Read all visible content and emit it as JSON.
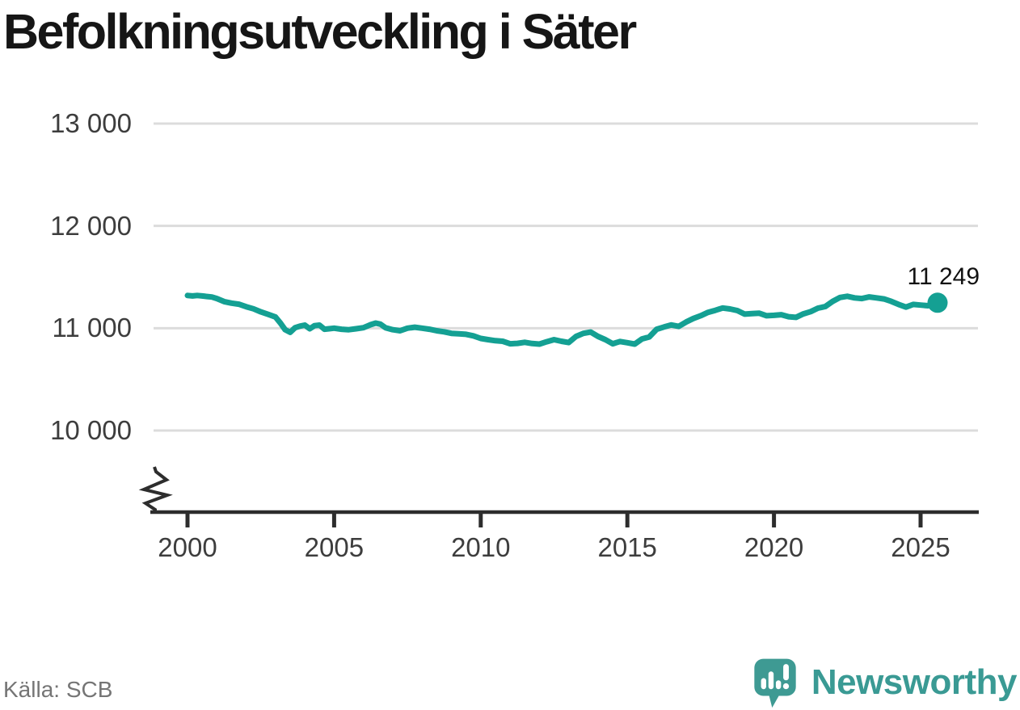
{
  "title": "Befolkningsutveckling i Säter",
  "source": "Källa: SCB",
  "brand": {
    "name": "Newsworthy",
    "logo_icon": "speech-bubble-bar-chart-exclamation",
    "color": "#3a9a94"
  },
  "colors": {
    "line": "#14a093",
    "grid": "#dcdcdc",
    "axis": "#2d2d2d",
    "tick_text": "#3d3d3d",
    "title_text": "#161616",
    "source_text": "#757575"
  },
  "chart_data": {
    "type": "line",
    "title": "Befolkningsutveckling i Säter",
    "xlabel": "",
    "ylabel": "",
    "grid": "horizontal",
    "legend": "none",
    "axis_break": true,
    "xlim": [
      1998.8,
      2027
    ],
    "ylim_shown": [
      10000,
      13000
    ],
    "y_ticks": [
      {
        "label": "13 000",
        "value": 13000
      },
      {
        "label": "12 000",
        "value": 12000
      },
      {
        "label": "11 000",
        "value": 11000
      },
      {
        "label": "10 000",
        "value": 10000
      }
    ],
    "x_ticks": [
      {
        "label": "2000",
        "value": 2000
      },
      {
        "label": "2005",
        "value": 2005
      },
      {
        "label": "2010",
        "value": 2010
      },
      {
        "label": "2015",
        "value": 2015
      },
      {
        "label": "2020",
        "value": 2020
      },
      {
        "label": "2025",
        "value": 2025
      }
    ],
    "end_label": "11 249",
    "end_value": 11249,
    "series": [
      {
        "name": "Befolkning i Säter",
        "color": "#14a093",
        "points": [
          [
            2000.0,
            11320
          ],
          [
            2000.17,
            11315
          ],
          [
            2000.33,
            11320
          ],
          [
            2000.5,
            11315
          ],
          [
            2000.67,
            11310
          ],
          [
            2000.83,
            11305
          ],
          [
            2001.0,
            11290
          ],
          [
            2001.25,
            11260
          ],
          [
            2001.5,
            11245
          ],
          [
            2001.75,
            11235
          ],
          [
            2002.0,
            11210
          ],
          [
            2002.25,
            11190
          ],
          [
            2002.5,
            11160
          ],
          [
            2002.75,
            11135
          ],
          [
            2003.0,
            11110
          ],
          [
            2003.17,
            11050
          ],
          [
            2003.33,
            10985
          ],
          [
            2003.5,
            10960
          ],
          [
            2003.67,
            11005
          ],
          [
            2003.83,
            11020
          ],
          [
            2004.0,
            11030
          ],
          [
            2004.17,
            10995
          ],
          [
            2004.33,
            11025
          ],
          [
            2004.5,
            11030
          ],
          [
            2004.67,
            10990
          ],
          [
            2004.83,
            10995
          ],
          [
            2005.0,
            11000
          ],
          [
            2005.25,
            10990
          ],
          [
            2005.5,
            10985
          ],
          [
            2005.75,
            10995
          ],
          [
            2006.0,
            11005
          ],
          [
            2006.25,
            11035
          ],
          [
            2006.42,
            11050
          ],
          [
            2006.58,
            11040
          ],
          [
            2006.75,
            11005
          ],
          [
            2007.0,
            10985
          ],
          [
            2007.25,
            10975
          ],
          [
            2007.5,
            11000
          ],
          [
            2007.75,
            11010
          ],
          [
            2008.0,
            11000
          ],
          [
            2008.25,
            10990
          ],
          [
            2008.5,
            10975
          ],
          [
            2008.75,
            10965
          ],
          [
            2009.0,
            10950
          ],
          [
            2009.25,
            10945
          ],
          [
            2009.5,
            10940
          ],
          [
            2009.75,
            10925
          ],
          [
            2010.0,
            10900
          ],
          [
            2010.25,
            10888
          ],
          [
            2010.5,
            10878
          ],
          [
            2010.75,
            10872
          ],
          [
            2011.0,
            10848
          ],
          [
            2011.25,
            10852
          ],
          [
            2011.5,
            10862
          ],
          [
            2011.75,
            10850
          ],
          [
            2012.0,
            10845
          ],
          [
            2012.25,
            10868
          ],
          [
            2012.5,
            10888
          ],
          [
            2012.75,
            10872
          ],
          [
            2013.0,
            10860
          ],
          [
            2013.25,
            10920
          ],
          [
            2013.5,
            10950
          ],
          [
            2013.75,
            10962
          ],
          [
            2014.0,
            10920
          ],
          [
            2014.25,
            10888
          ],
          [
            2014.5,
            10848
          ],
          [
            2014.75,
            10870
          ],
          [
            2015.0,
            10858
          ],
          [
            2015.25,
            10845
          ],
          [
            2015.5,
            10895
          ],
          [
            2015.75,
            10915
          ],
          [
            2016.0,
            10990
          ],
          [
            2016.25,
            11012
          ],
          [
            2016.5,
            11032
          ],
          [
            2016.75,
            11018
          ],
          [
            2017.0,
            11060
          ],
          [
            2017.25,
            11095
          ],
          [
            2017.5,
            11122
          ],
          [
            2017.75,
            11155
          ],
          [
            2018.0,
            11175
          ],
          [
            2018.25,
            11198
          ],
          [
            2018.5,
            11188
          ],
          [
            2018.75,
            11172
          ],
          [
            2019.0,
            11138
          ],
          [
            2019.25,
            11142
          ],
          [
            2019.5,
            11146
          ],
          [
            2019.75,
            11122
          ],
          [
            2020.0,
            11126
          ],
          [
            2020.25,
            11132
          ],
          [
            2020.5,
            11112
          ],
          [
            2020.75,
            11106
          ],
          [
            2021.0,
            11140
          ],
          [
            2021.25,
            11162
          ],
          [
            2021.5,
            11196
          ],
          [
            2021.75,
            11212
          ],
          [
            2022.0,
            11262
          ],
          [
            2022.25,
            11300
          ],
          [
            2022.5,
            11312
          ],
          [
            2022.75,
            11296
          ],
          [
            2023.0,
            11290
          ],
          [
            2023.25,
            11306
          ],
          [
            2023.5,
            11296
          ],
          [
            2023.75,
            11286
          ],
          [
            2024.0,
            11262
          ],
          [
            2024.25,
            11232
          ],
          [
            2024.5,
            11206
          ],
          [
            2024.75,
            11232
          ],
          [
            2025.0,
            11226
          ],
          [
            2025.25,
            11220
          ],
          [
            2025.58,
            11249
          ]
        ]
      }
    ]
  }
}
